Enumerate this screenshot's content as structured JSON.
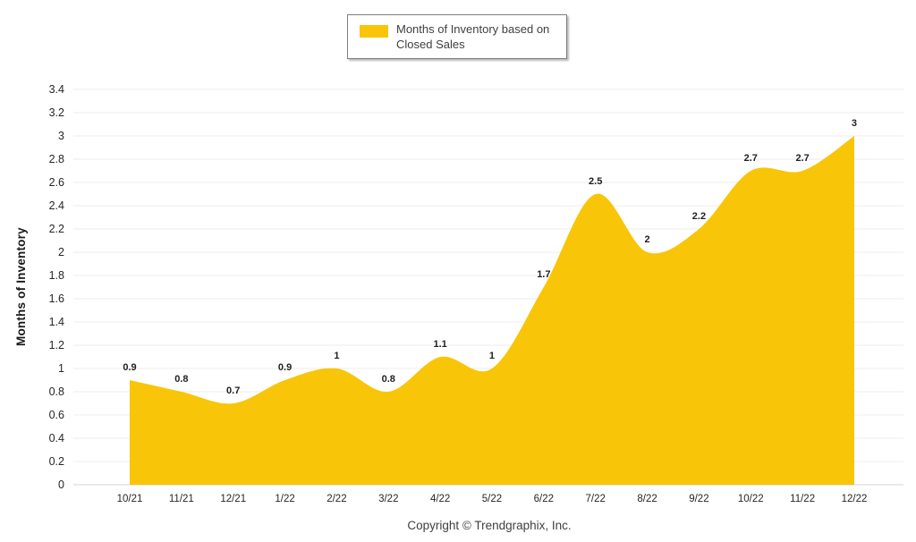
{
  "page": {
    "copyright": "Copyright © Trendgraphix, Inc."
  },
  "legend": {
    "label": "Months of Inventory based on Closed Sales",
    "swatch_icon": "yellow-square-swatch"
  },
  "chart_data": {
    "type": "area",
    "title": "",
    "xlabel": "",
    "ylabel": "Months of Inventory",
    "categories": [
      "10/21",
      "11/21",
      "12/21",
      "1/22",
      "2/22",
      "3/22",
      "4/22",
      "5/22",
      "6/22",
      "7/22",
      "8/22",
      "9/22",
      "10/22",
      "11/22",
      "12/22"
    ],
    "series": [
      {
        "name": "Months of Inventory based on Closed Sales",
        "values": [
          0.9,
          0.8,
          0.7,
          0.9,
          1,
          0.8,
          1.1,
          1,
          1.7,
          2.5,
          2,
          2.2,
          2.7,
          2.7,
          3
        ]
      }
    ],
    "ylim": [
      0,
      3.4
    ],
    "ytick_step": 0.2,
    "grid": true,
    "smooth": true,
    "data_labels_shown": true,
    "legend_position": "top-center",
    "colors": {
      "area_fill": "#F8C508",
      "grid_line": "#ECECEC",
      "axis_line": "#D6D6D6",
      "tick_text": "#262626",
      "data_label_text": "#1F1F1F",
      "legend_text": "#3F3F3F",
      "legend_border": "#7F7F7F",
      "background": "#FFFFFF"
    }
  }
}
